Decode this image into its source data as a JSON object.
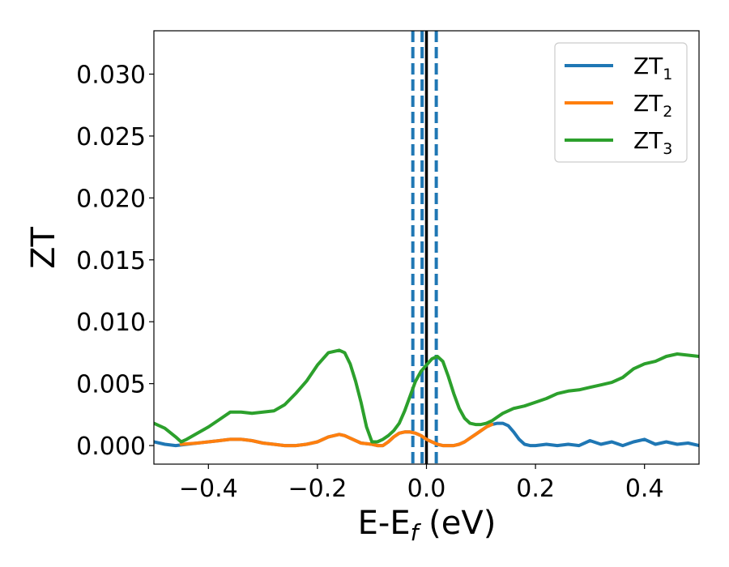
{
  "chart_data": {
    "type": "line",
    "xlabel_main": "E-E",
    "xlabel_sub": "f",
    "xlabel_unit": " (eV)",
    "ylabel": "ZT",
    "xlim": [
      -0.5,
      0.5
    ],
    "ylim": [
      -0.0015,
      0.0335
    ],
    "x_ticks": [
      -0.4,
      -0.2,
      0.0,
      0.2,
      0.4
    ],
    "x_tick_labels": [
      "−0.4",
      "−0.2",
      "0.0",
      "0.2",
      "0.4"
    ],
    "y_ticks": [
      0.0,
      0.005,
      0.01,
      0.015,
      0.02,
      0.025,
      0.03
    ],
    "y_tick_labels": [
      "0.000",
      "0.005",
      "0.010",
      "0.015",
      "0.020",
      "0.025",
      "0.030"
    ],
    "grid": false,
    "legend_placement": "top-right",
    "vlines": [
      {
        "x": 0.0,
        "style": "solid",
        "color": "#000000"
      },
      {
        "x": -0.025,
        "style": "dashed",
        "color": "#1f77b4"
      },
      {
        "x": -0.008,
        "style": "dashed",
        "color": "#1f77b4"
      },
      {
        "x": 0.018,
        "style": "dashed",
        "color": "#1f77b4"
      }
    ],
    "series": [
      {
        "name": "ZT",
        "name_sub": "1",
        "color": "#1f77b4",
        "x": [
          -0.5,
          -0.48,
          -0.46,
          -0.44,
          -0.42,
          -0.4,
          -0.38,
          -0.36,
          -0.34,
          -0.32,
          -0.3,
          -0.28,
          -0.26,
          -0.24,
          -0.22,
          -0.2,
          -0.18,
          -0.16,
          -0.15,
          -0.14,
          -0.12,
          -0.1,
          -0.09,
          -0.08,
          -0.07,
          -0.06,
          -0.05,
          -0.04,
          -0.03,
          -0.02,
          -0.01,
          0.0,
          0.01,
          0.02,
          0.03,
          0.04,
          0.05,
          0.06,
          0.07,
          0.08,
          0.09,
          0.1,
          0.11,
          0.12,
          0.13,
          0.14,
          0.15,
          0.16,
          0.17,
          0.18,
          0.19,
          0.2,
          0.22,
          0.24,
          0.26,
          0.28,
          0.3,
          0.32,
          0.34,
          0.36,
          0.38,
          0.4,
          0.42,
          0.44,
          0.46,
          0.48,
          0.5
        ],
        "y": [
          0.0003,
          0.0001,
          0.0,
          0.0001,
          0.0002,
          0.0003,
          0.0004,
          0.0005,
          0.0005,
          0.0004,
          0.0002,
          0.0001,
          0.0,
          0.0,
          0.0001,
          0.0003,
          0.0007,
          0.0009,
          0.0008,
          0.0006,
          0.0002,
          0.0001,
          0.0,
          0.0,
          0.0003,
          0.0007,
          0.001,
          0.0011,
          0.0011,
          0.001,
          0.0008,
          0.0005,
          0.0003,
          0.0001,
          0.0,
          0.0,
          0.0,
          0.0001,
          0.0003,
          0.0006,
          0.0009,
          0.0012,
          0.0015,
          0.0017,
          0.0018,
          0.0018,
          0.0016,
          0.0011,
          0.0005,
          0.0001,
          0.0,
          0.0,
          0.0001,
          0.0,
          0.0001,
          0.0,
          0.0004,
          0.0001,
          0.0003,
          0.0,
          0.0003,
          0.0005,
          0.0001,
          0.0003,
          0.0001,
          0.0002,
          0.0
        ]
      },
      {
        "name": "ZT",
        "name_sub": "2",
        "color": "#ff7f0e",
        "x": [
          -0.45,
          -0.42,
          -0.4,
          -0.38,
          -0.36,
          -0.34,
          -0.32,
          -0.3,
          -0.28,
          -0.26,
          -0.24,
          -0.22,
          -0.2,
          -0.18,
          -0.16,
          -0.15,
          -0.14,
          -0.12,
          -0.1,
          -0.09,
          -0.08,
          -0.07,
          -0.06,
          -0.05,
          -0.04,
          -0.03,
          -0.02,
          -0.01,
          0.0,
          0.01,
          0.02,
          0.03,
          0.04,
          0.05,
          0.06,
          0.07,
          0.08,
          0.09,
          0.1,
          0.11,
          0.12
        ],
        "y": [
          0.0001,
          0.0002,
          0.0003,
          0.0004,
          0.0005,
          0.0005,
          0.0004,
          0.0002,
          0.0001,
          0.0,
          0.0,
          0.0001,
          0.0003,
          0.0007,
          0.0009,
          0.0008,
          0.0006,
          0.0002,
          0.0001,
          0.0,
          0.0,
          0.0003,
          0.0007,
          0.001,
          0.0011,
          0.0011,
          0.001,
          0.0008,
          0.0005,
          0.0003,
          0.0001,
          0.0,
          0.0,
          0.0,
          0.0001,
          0.0003,
          0.0006,
          0.0009,
          0.0012,
          0.0015,
          0.0017
        ]
      },
      {
        "name": "ZT",
        "name_sub": "3",
        "color": "#2ca02c",
        "x": [
          -0.5,
          -0.48,
          -0.46,
          -0.45,
          -0.44,
          -0.42,
          -0.4,
          -0.38,
          -0.36,
          -0.34,
          -0.32,
          -0.3,
          -0.28,
          -0.26,
          -0.24,
          -0.22,
          -0.2,
          -0.18,
          -0.16,
          -0.15,
          -0.14,
          -0.13,
          -0.12,
          -0.11,
          -0.1,
          -0.09,
          -0.08,
          -0.07,
          -0.06,
          -0.05,
          -0.04,
          -0.03,
          -0.02,
          -0.01,
          0.0,
          0.01,
          0.02,
          0.03,
          0.04,
          0.05,
          0.06,
          0.07,
          0.08,
          0.09,
          0.1,
          0.11,
          0.12,
          0.13,
          0.14,
          0.16,
          0.18,
          0.2,
          0.22,
          0.24,
          0.26,
          0.28,
          0.3,
          0.32,
          0.34,
          0.36,
          0.38,
          0.4,
          0.42,
          0.44,
          0.46,
          0.48,
          0.5
        ],
        "y": [
          0.0018,
          0.0014,
          0.0007,
          0.0003,
          0.0005,
          0.001,
          0.0015,
          0.0021,
          0.0027,
          0.0027,
          0.0026,
          0.0027,
          0.0028,
          0.0033,
          0.0042,
          0.0052,
          0.0065,
          0.0075,
          0.0077,
          0.0075,
          0.0066,
          0.0052,
          0.0035,
          0.0015,
          0.0003,
          0.0003,
          0.0005,
          0.0008,
          0.0012,
          0.0018,
          0.0028,
          0.004,
          0.0052,
          0.006,
          0.0065,
          0.007,
          0.0072,
          0.0068,
          0.0056,
          0.0042,
          0.003,
          0.0022,
          0.0018,
          0.0017,
          0.0017,
          0.0018,
          0.002,
          0.0023,
          0.0026,
          0.003,
          0.0032,
          0.0035,
          0.0038,
          0.0042,
          0.0044,
          0.0045,
          0.0047,
          0.0049,
          0.0051,
          0.0055,
          0.0062,
          0.0066,
          0.0068,
          0.0072,
          0.0074,
          0.0073,
          0.0072
        ]
      }
    ]
  }
}
